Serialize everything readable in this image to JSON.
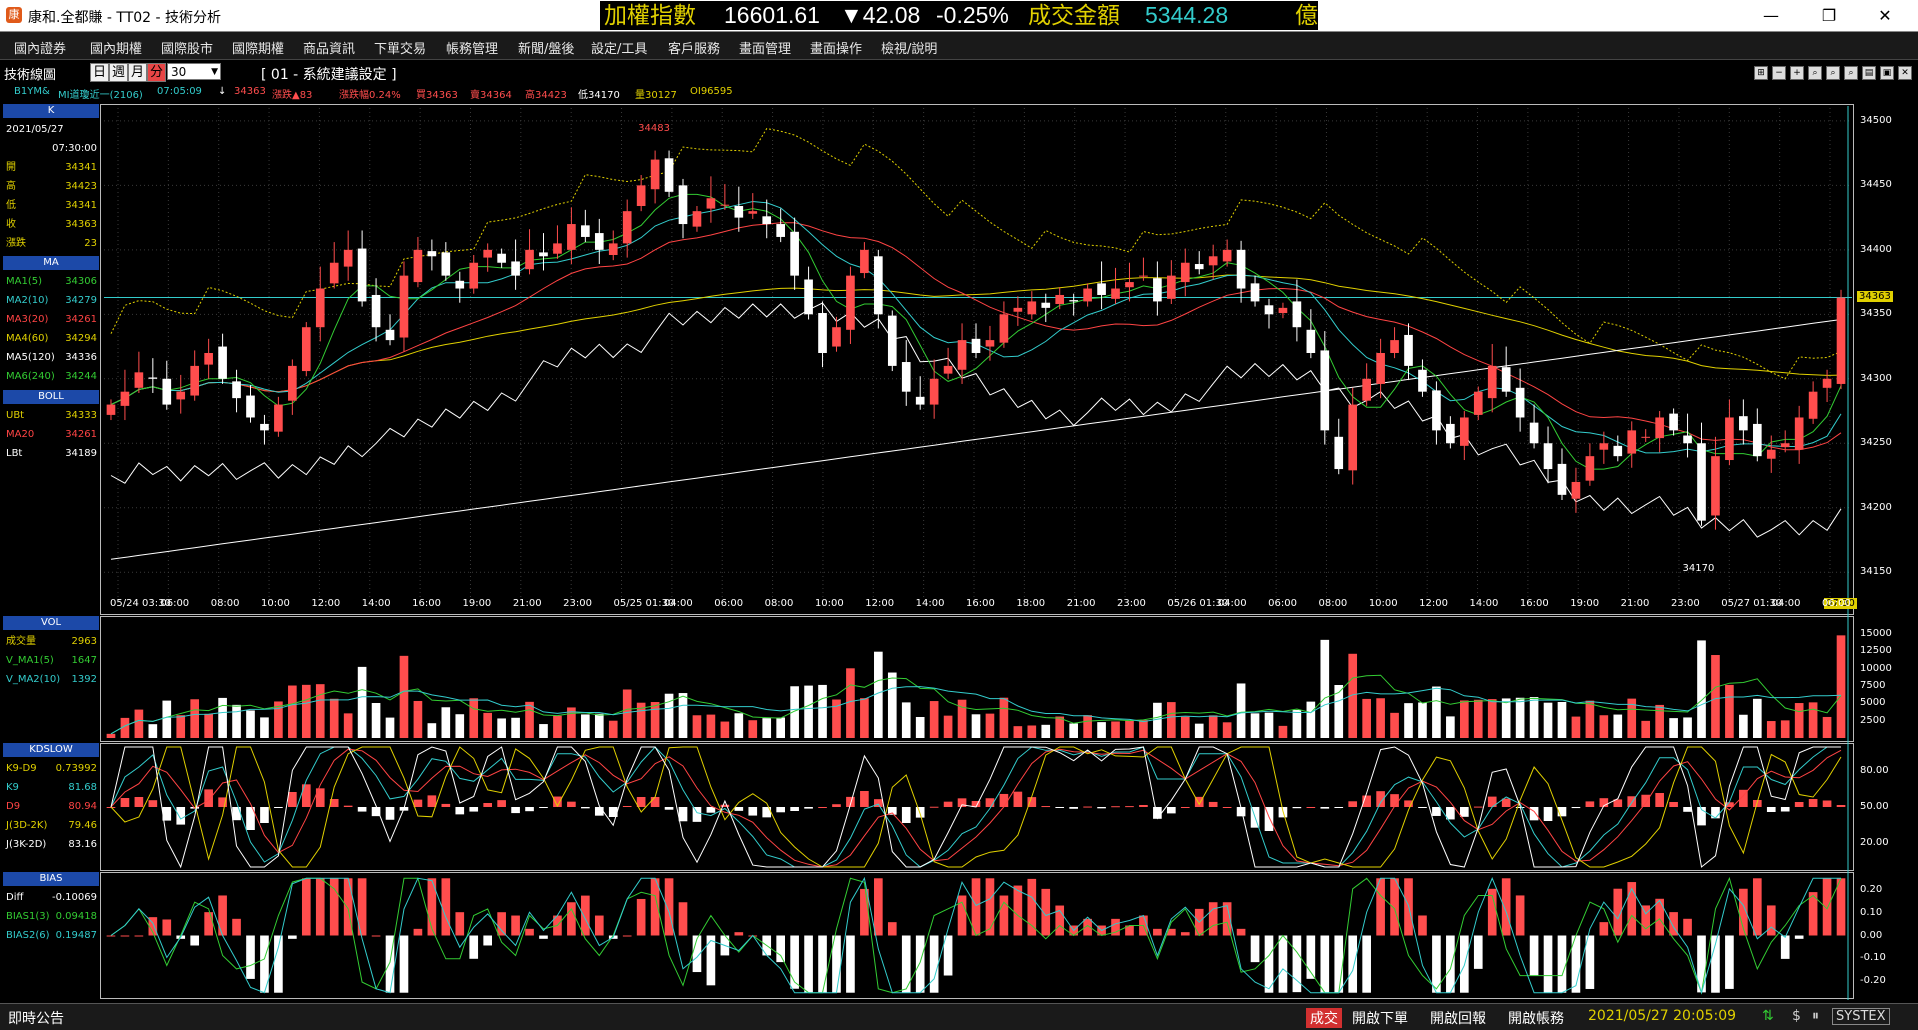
{
  "window": {
    "icon_glyph": "康",
    "title": "康和.全都賺 - TT02 - 技術分析",
    "minimize": "—",
    "maximize": "❐",
    "close": "✕"
  },
  "ticker": {
    "name": "加權指數",
    "price": "16601.61",
    "change": "▼42.08",
    "change_pct": "-0.25%",
    "amount_label": "成交金額",
    "amount": "5344.28",
    "unit": "億"
  },
  "menu": [
    "國內證券",
    "國內期權",
    "國際股市",
    "國際期權",
    "商品資訊",
    "下單交易",
    "帳務管理",
    "新聞/盤後",
    "設定/工具",
    "客戶服務",
    "畫面管理",
    "畫面操作",
    "檢視/說明"
  ],
  "toolbar": {
    "window_label": "技術線圖",
    "periods": [
      "日",
      "週",
      "月",
      "分"
    ],
    "active_period": "分",
    "interval": "30",
    "strategy": "[ 01 - 系統建議設定 ]",
    "icons": [
      "⊞",
      "−",
      "+",
      "⌕",
      "⌕",
      "⌕",
      "▤",
      "▣",
      "✕"
    ]
  },
  "quote": {
    "symbol": "B1YM&",
    "name": "MI道瓊近一(2106)",
    "time": "07:05:09",
    "arrow": "↓",
    "price": "34363",
    "change": "漲跌▲83",
    "change_pct": "漲跌幅0.24%",
    "bid": "買34363",
    "ask": "賣34364",
    "high": "高34423",
    "low": "低34170",
    "volume": "量30127",
    "oi": "OI96595"
  },
  "k_panel": {
    "header": "K",
    "date": "2021/05/27",
    "time": "07:30:00",
    "rows": [
      {
        "label": "開",
        "value": "34341"
      },
      {
        "label": "高",
        "value": "34423"
      },
      {
        "label": "低",
        "value": "34341"
      },
      {
        "label": "收",
        "value": "34363"
      },
      {
        "label": "漲跌",
        "value": "23"
      }
    ]
  },
  "ma_panel": {
    "header": "MA",
    "rows": [
      {
        "label": "MA1(5)",
        "value": "34306",
        "color": "#33cc33"
      },
      {
        "label": "MA2(10)",
        "value": "34279",
        "color": "#33cccc"
      },
      {
        "label": "MA3(20)",
        "value": "34261",
        "color": "#ff4444"
      },
      {
        "label": "MA4(60)",
        "value": "34294",
        "color": "#e0d000"
      },
      {
        "label": "MA5(120)",
        "value": "34336",
        "color": "#ffffff"
      },
      {
        "label": "MA6(240)",
        "value": "34244",
        "color": "#33cc33"
      }
    ]
  },
  "boll_panel": {
    "header": "BOLL",
    "rows": [
      {
        "label": "UBt",
        "value": "34333",
        "color": "#e0d000"
      },
      {
        "label": "MA20",
        "value": "34261",
        "color": "#ff4444"
      },
      {
        "label": "LBt",
        "value": "34189",
        "color": "#ffffff"
      }
    ]
  },
  "vol_panel": {
    "header": "VOL",
    "rows": [
      {
        "label": "成交量",
        "value": "2963",
        "color": "#e0d000"
      },
      {
        "label": "V_MA1(5)",
        "value": "1647",
        "color": "#33cc33"
      },
      {
        "label": "V_MA2(10)",
        "value": "1392",
        "color": "#33cccc"
      }
    ],
    "ticks": [
      "15000",
      "12500",
      "10000",
      "7500",
      "5000",
      "2500"
    ]
  },
  "kd_panel": {
    "header": "KDSLOW",
    "rows": [
      {
        "label": "K9-D9",
        "value": "0.73992",
        "color": "#e0d000"
      },
      {
        "label": "K9",
        "value": "81.68",
        "color": "#33cccc"
      },
      {
        "label": "D9",
        "value": "80.94",
        "color": "#ff4444"
      },
      {
        "label": "J(3D-2K)",
        "value": "79.46",
        "color": "#e0d000"
      },
      {
        "label": "J(3K-2D)",
        "value": "83.16",
        "color": "#ffffff"
      }
    ],
    "ticks": [
      "80.00",
      "50.00",
      "20.00"
    ]
  },
  "bias_panel": {
    "header": "BIAS",
    "rows": [
      {
        "label": "Diff",
        "value": "-0.10069",
        "color": "#ffffff"
      },
      {
        "label": "BIAS1(3)",
        "value": "0.09418",
        "color": "#33cc33"
      },
      {
        "label": "BIAS2(6)",
        "value": "0.19487",
        "color": "#33cccc"
      }
    ],
    "ticks": [
      "0.20",
      "0.10",
      "0.00",
      "-0.10",
      "-0.20"
    ]
  },
  "price_axis": [
    "34500",
    "34450",
    "34400",
    "34350",
    "34300",
    "34250",
    "34200",
    "34150"
  ],
  "price_marker": "34363",
  "time_marker": "07:30",
  "annotations": {
    "high": "34483",
    "low": "34170"
  },
  "time_axis": [
    "05/24 03:30",
    "06:00",
    "08:00",
    "10:00",
    "12:00",
    "14:00",
    "16:00",
    "19:00",
    "21:00",
    "23:00",
    "05/25 01:30",
    "04:00",
    "06:00",
    "08:00",
    "10:00",
    "12:00",
    "14:00",
    "16:00",
    "18:00",
    "21:00",
    "23:00",
    "05/26 01:30",
    "04:00",
    "06:00",
    "08:00",
    "10:00",
    "12:00",
    "14:00",
    "16:00",
    "19:00",
    "21:00",
    "23:00",
    "05/27 01:30",
    "04:00",
    "06:00"
  ],
  "status": {
    "announce": "即時公告",
    "trade": "成交",
    "open_order": "開啟下單",
    "open_reply": "開啟回報",
    "open_account": "開啟帳務",
    "datetime": "2021/05/27 20:05:09",
    "brand": "SYSTEX"
  },
  "colors": {
    "up": "#ff4d4d",
    "down": "#ffffff",
    "highlight": "#e0d000",
    "cyan": "#33cccc"
  },
  "chart_data": {
    "type": "candlestick",
    "x_range": [
      "05/24 03:30",
      "05/27 07:30"
    ],
    "ylim": [
      34130,
      34510
    ],
    "closes": [
      34280,
      34290,
      34305,
      34300,
      34280,
      34290,
      34310,
      34320,
      34300,
      34285,
      34270,
      34260,
      34280,
      34310,
      34340,
      34370,
      34390,
      34400,
      34360,
      34340,
      34330,
      34380,
      34400,
      34395,
      34380,
      34370,
      34390,
      34400,
      34390,
      34380,
      34400,
      34395,
      34405,
      34420,
      34410,
      34400,
      34405,
      34430,
      34450,
      34470,
      34445,
      34420,
      34430,
      34440,
      34435,
      34425,
      34430,
      34420,
      34410,
      34380,
      34350,
      34320,
      34340,
      34380,
      34400,
      34350,
      34310,
      34290,
      34280,
      34300,
      34310,
      34330,
      34320,
      34330,
      34350,
      34355,
      34360,
      34355,
      34365,
      34360,
      34370,
      34365,
      34370,
      34375,
      34380,
      34360,
      34380,
      34390,
      34385,
      34395,
      34400,
      34370,
      34360,
      34350,
      34355,
      34340,
      34320,
      34260,
      34230,
      34280,
      34300,
      34320,
      34330,
      34310,
      34290,
      34260,
      34250,
      34270,
      34290,
      34310,
      34290,
      34270,
      34250,
      34230,
      34210,
      34220,
      34240,
      34250,
      34240,
      34260,
      34255,
      34270,
      34260,
      34250,
      34190,
      34240,
      34270,
      34260,
      34240,
      34245,
      34250,
      34270,
      34290,
      34300,
      34363
    ]
  }
}
